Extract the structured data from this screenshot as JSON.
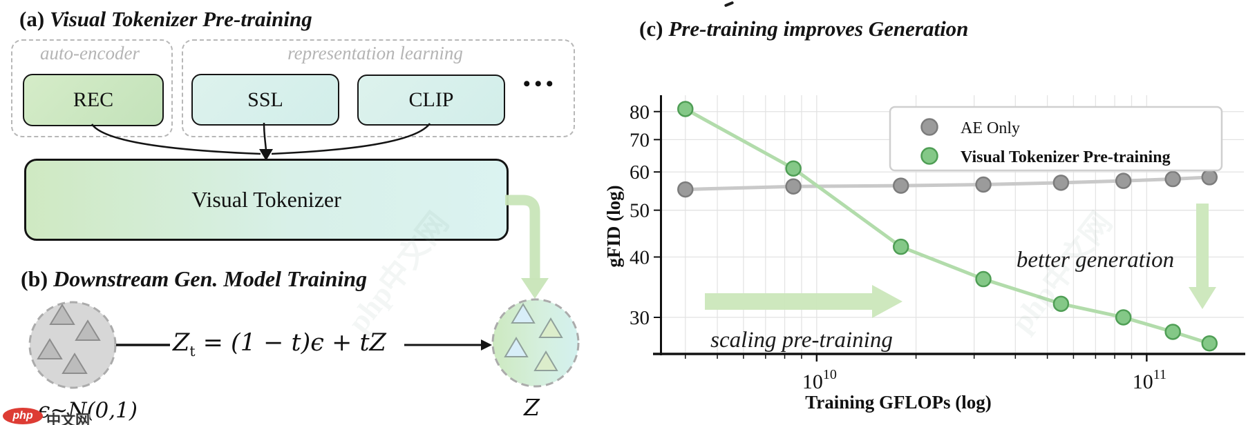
{
  "panel_a": {
    "title_prefix": "(a)",
    "title": "Visual Tokenizer Pre-training",
    "groups": {
      "auto_encoder": "auto-encoder",
      "representation_learning": "representation learning"
    },
    "boxes": {
      "rec": "REC",
      "ssl": "SSL",
      "clip": "CLIP",
      "tokenizer": "Visual Tokenizer"
    },
    "ellipsis": "•••"
  },
  "panel_b": {
    "title_prefix": "(b)",
    "title": "Downstream Gen. Model Training",
    "equation": {
      "base": "Z",
      "sub": "t",
      "rhs": " = (1 − t)ϵ + tZ"
    },
    "noise_label": "ϵ~N(0,1)",
    "latent_label": "Z"
  },
  "panel_c": {
    "title_prefix": "(c)",
    "title": "Pre-training improves Generation"
  },
  "watermark": {
    "logo": "php",
    "text": "中文网",
    "ghost": "php中文网"
  },
  "chart_data": {
    "type": "line",
    "title": "(c) Pre-training improves Generation",
    "xlabel": "Training GFLOPs (log)",
    "ylabel": "gFID (log)",
    "x_scale": "log",
    "y_scale": "log",
    "xlim": [
      3350000000.0,
      197000000000.0
    ],
    "ylim": [
      25.2,
      86.5
    ],
    "grid": true,
    "legend_position": "upper right",
    "x_ticks": [
      {
        "base": "10",
        "exp": "10",
        "value": 10000000000.0
      },
      {
        "base": "10",
        "exp": "11",
        "value": 100000000000.0
      }
    ],
    "y_ticks": [
      30,
      40,
      50,
      60,
      70,
      80
    ],
    "x": [
      4000000000.0,
      8500000000.0,
      18000000000.0,
      32000000000.0,
      55000000000.0,
      85000000000.0,
      120000000000.0,
      155000000000.0
    ],
    "series": [
      {
        "name": "AE Only",
        "color": "#9b9b9b",
        "edge_color": "#7c7c7c",
        "line_color": "#c9c9c9",
        "values": [
          55.2,
          56.0,
          56.2,
          56.5,
          57.0,
          57.5,
          58.0,
          58.5
        ]
      },
      {
        "name": "Visual Tokenizer Pre-training",
        "color": "#84c887",
        "edge_color": "#4f9e55",
        "line_color": "#b2dcab",
        "values": [
          81,
          61,
          42,
          36,
          32,
          30,
          28,
          26.5
        ]
      }
    ],
    "annotations": [
      "scaling pre-training",
      "better generation"
    ],
    "arrow_color": "#cbe7ba"
  }
}
